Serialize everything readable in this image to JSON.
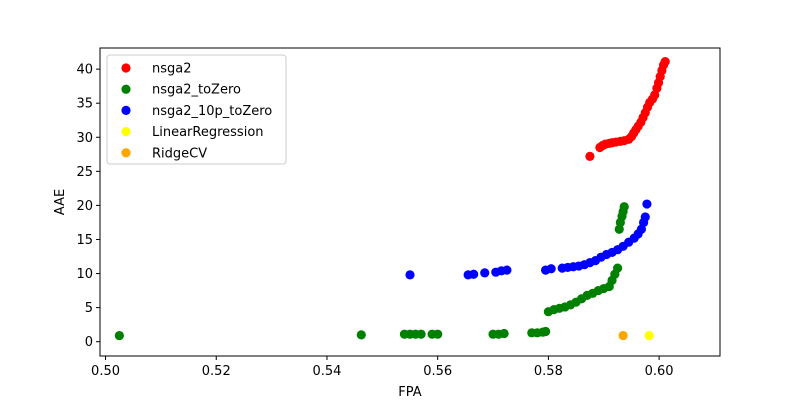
{
  "chart_data": {
    "type": "scatter",
    "xlabel": "FPA",
    "ylabel": "AAE",
    "xlim": [
      0.499,
      0.611
    ],
    "ylim": [
      -2.1,
      43.1
    ],
    "xticks": [
      0.5,
      0.52,
      0.54,
      0.56,
      0.58,
      0.6
    ],
    "xtick_labels": [
      "0.50",
      "0.52",
      "0.54",
      "0.56",
      "0.58",
      "0.60"
    ],
    "yticks": [
      0,
      5,
      10,
      15,
      20,
      25,
      30,
      35,
      40
    ],
    "ytick_labels": [
      "0",
      "5",
      "10",
      "15",
      "20",
      "25",
      "30",
      "35",
      "40"
    ],
    "grid": false,
    "legend_position": "upper-left",
    "series": [
      {
        "name": "nsga2",
        "color": "#ff0000",
        "points": [
          [
            0.5875,
            27.2
          ],
          [
            0.5893,
            28.5
          ],
          [
            0.5898,
            28.8
          ],
          [
            0.5903,
            29.0
          ],
          [
            0.591,
            29.1
          ],
          [
            0.5915,
            29.2
          ],
          [
            0.5922,
            29.3
          ],
          [
            0.593,
            29.4
          ],
          [
            0.5937,
            29.5
          ],
          [
            0.5945,
            29.7
          ],
          [
            0.595,
            30.1
          ],
          [
            0.5954,
            30.6
          ],
          [
            0.5958,
            31.1
          ],
          [
            0.5962,
            31.6
          ],
          [
            0.5967,
            32.2
          ],
          [
            0.5971,
            32.9
          ],
          [
            0.5975,
            33.6
          ],
          [
            0.5979,
            34.4
          ],
          [
            0.5983,
            35.1
          ],
          [
            0.5988,
            35.6
          ],
          [
            0.5992,
            36.2
          ],
          [
            0.5996,
            37.2
          ],
          [
            0.5999,
            38.0
          ],
          [
            0.6002,
            38.9
          ],
          [
            0.6005,
            39.8
          ],
          [
            0.6008,
            40.6
          ],
          [
            0.6011,
            41.1
          ]
        ]
      },
      {
        "name": "nsga2_toZero",
        "color": "#008000",
        "points": [
          [
            0.5025,
            0.9
          ],
          [
            0.5462,
            1.0
          ],
          [
            0.554,
            1.1
          ],
          [
            0.555,
            1.1
          ],
          [
            0.556,
            1.1
          ],
          [
            0.557,
            1.1
          ],
          [
            0.559,
            1.1
          ],
          [
            0.56,
            1.1
          ],
          [
            0.57,
            1.1
          ],
          [
            0.571,
            1.1
          ],
          [
            0.572,
            1.2
          ],
          [
            0.577,
            1.3
          ],
          [
            0.578,
            1.3
          ],
          [
            0.579,
            1.4
          ],
          [
            0.5795,
            1.5
          ],
          [
            0.58,
            4.4
          ],
          [
            0.581,
            4.7
          ],
          [
            0.582,
            4.9
          ],
          [
            0.583,
            5.1
          ],
          [
            0.584,
            5.4
          ],
          [
            0.585,
            5.8
          ],
          [
            0.586,
            6.3
          ],
          [
            0.587,
            6.8
          ],
          [
            0.588,
            7.1
          ],
          [
            0.589,
            7.5
          ],
          [
            0.59,
            7.8
          ],
          [
            0.591,
            8.1
          ],
          [
            0.5915,
            9.0
          ],
          [
            0.592,
            9.9
          ],
          [
            0.5925,
            10.8
          ],
          [
            0.5928,
            16.5
          ],
          [
            0.593,
            17.5
          ],
          [
            0.5933,
            18.4
          ],
          [
            0.5935,
            19.1
          ],
          [
            0.5937,
            19.8
          ]
        ]
      },
      {
        "name": "nsga2_10p_toZero",
        "color": "#0000ff",
        "points": [
          [
            0.555,
            9.8
          ],
          [
            0.5655,
            9.8
          ],
          [
            0.5665,
            9.9
          ],
          [
            0.5685,
            10.1
          ],
          [
            0.5705,
            10.2
          ],
          [
            0.5715,
            10.4
          ],
          [
            0.5725,
            10.5
          ],
          [
            0.5795,
            10.5
          ],
          [
            0.5805,
            10.7
          ],
          [
            0.5825,
            10.8
          ],
          [
            0.5835,
            10.9
          ],
          [
            0.5845,
            11.0
          ],
          [
            0.5855,
            11.1
          ],
          [
            0.5865,
            11.3
          ],
          [
            0.5875,
            11.6
          ],
          [
            0.5885,
            11.9
          ],
          [
            0.5895,
            12.4
          ],
          [
            0.5905,
            12.8
          ],
          [
            0.5915,
            13.1
          ],
          [
            0.5925,
            13.5
          ],
          [
            0.5935,
            14.0
          ],
          [
            0.5945,
            14.6
          ],
          [
            0.5955,
            15.2
          ],
          [
            0.5962,
            15.8
          ],
          [
            0.5968,
            16.5
          ],
          [
            0.5972,
            17.5
          ],
          [
            0.5975,
            18.3
          ],
          [
            0.5978,
            20.2
          ]
        ]
      },
      {
        "name": "LinearRegression",
        "color": "#ffff00",
        "points": [
          [
            0.5982,
            0.9
          ]
        ]
      },
      {
        "name": "RidgeCV",
        "color": "#ffa500",
        "points": [
          [
            0.5935,
            0.9
          ]
        ]
      }
    ]
  }
}
